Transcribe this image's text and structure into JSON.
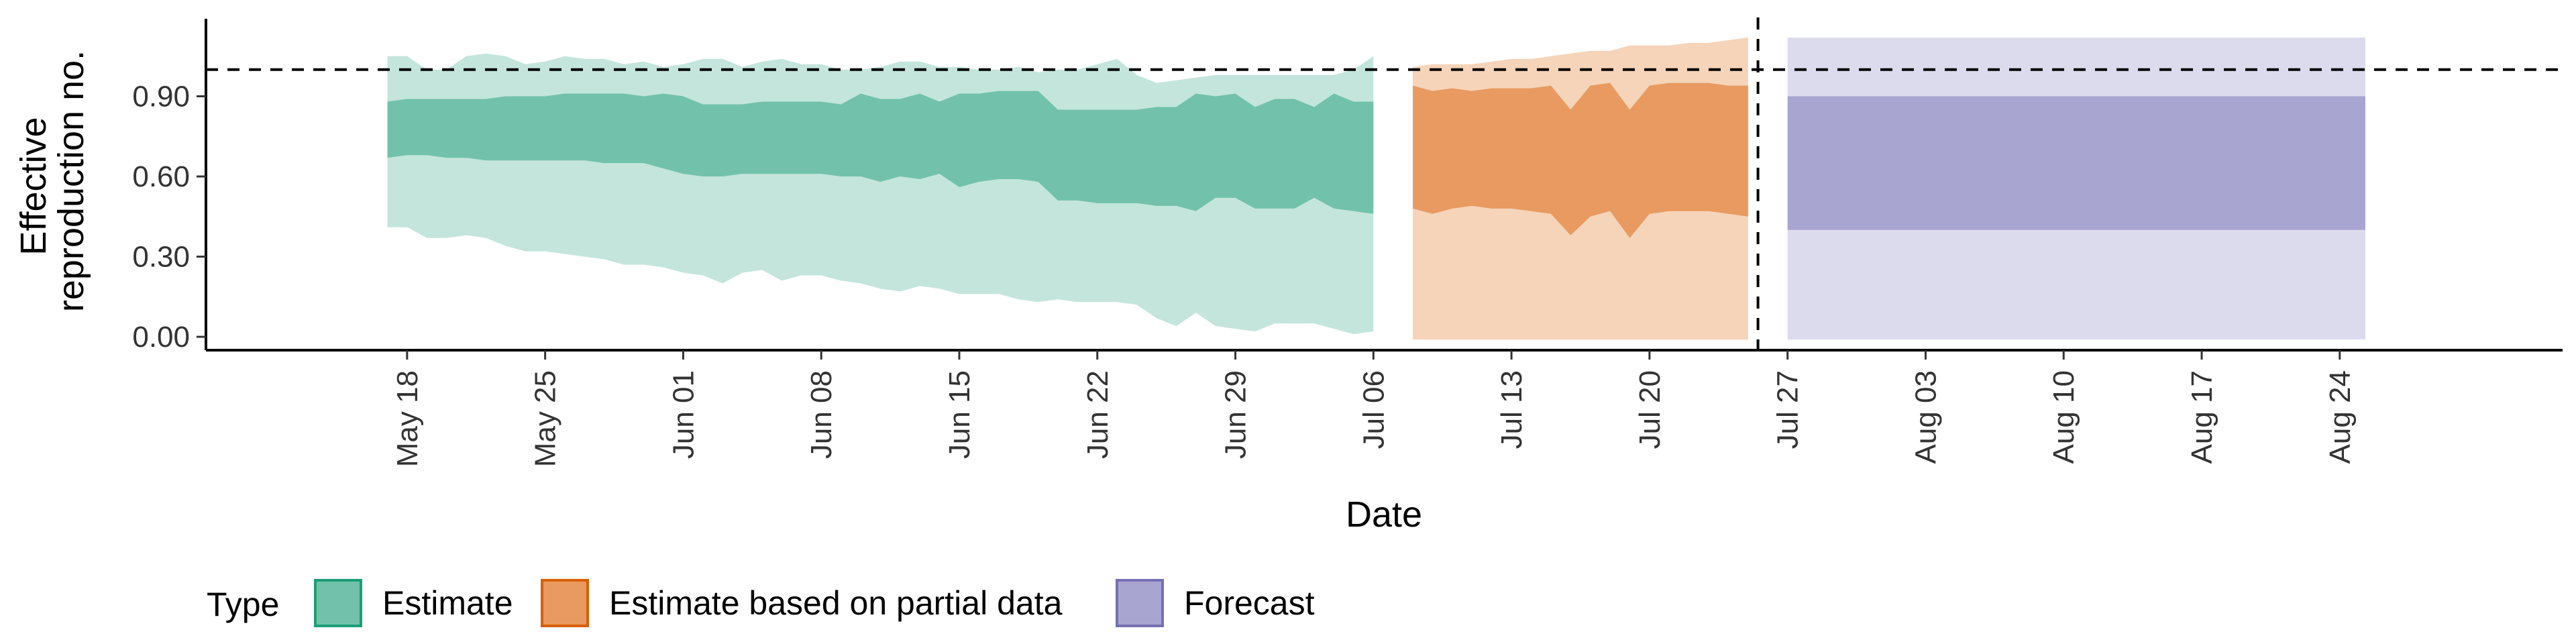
{
  "chart_data": {
    "type": "area",
    "xlabel": "Date",
    "ylabel": [
      "Effective",
      "reproduction no."
    ],
    "ylim": [
      -0.05,
      1.19
    ],
    "x_range_days": [
      -10.2,
      109.3
    ],
    "y_ticks": [
      0.0,
      0.3,
      0.6,
      0.9
    ],
    "y_tick_labels": [
      "0.00",
      "0.30",
      "0.60",
      "0.90"
    ],
    "x_ticks_days": [
      0,
      7,
      14,
      21,
      28,
      35,
      42,
      49,
      56,
      63,
      70,
      77,
      84,
      91,
      98
    ],
    "x_tick_labels": [
      "May 18",
      "May 25",
      "Jun 01",
      "Jun 08",
      "Jun 15",
      "Jun 22",
      "Jun 29",
      "Jul 06",
      "Jul 13",
      "Jul 20",
      "Jul 27",
      "Aug 03",
      "Aug 10",
      "Aug 17",
      "Aug 24"
    ],
    "date_origin": "May 18",
    "reference_hline": 1.0,
    "reference_vline_day": 68.5,
    "legend_title": "Type",
    "legend_position": "bottom-left",
    "series": [
      {
        "name": "Estimate",
        "color": "#1b9e77",
        "fill_dark": "#72c2ab",
        "fill_light": "#c4e5dc",
        "day_start": -1,
        "day_step": 1,
        "upper90": [
          1.05,
          1.05,
          1.0,
          1.0,
          1.05,
          1.06,
          1.05,
          1.02,
          1.03,
          1.05,
          1.04,
          1.04,
          1.02,
          1.03,
          1.01,
          1.02,
          1.04,
          1.04,
          1.01,
          1.03,
          1.04,
          1.02,
          1.02,
          1.0,
          1.0,
          1.01,
          1.03,
          1.03,
          1.01,
          1.01,
          1.0,
          1.0,
          1.01,
          0.99,
          1.0,
          1.0,
          1.02,
          1.04,
          0.98,
          0.95,
          0.96,
          0.97,
          0.98,
          0.98,
          0.98,
          0.98,
          0.98,
          0.98,
          0.98,
          1.0,
          1.05
        ],
        "upper50": [
          0.88,
          0.89,
          0.89,
          0.89,
          0.89,
          0.89,
          0.9,
          0.9,
          0.9,
          0.91,
          0.91,
          0.91,
          0.91,
          0.9,
          0.91,
          0.9,
          0.87,
          0.87,
          0.87,
          0.88,
          0.88,
          0.88,
          0.88,
          0.87,
          0.91,
          0.89,
          0.89,
          0.91,
          0.88,
          0.91,
          0.91,
          0.92,
          0.92,
          0.92,
          0.85,
          0.85,
          0.85,
          0.85,
          0.85,
          0.86,
          0.86,
          0.91,
          0.9,
          0.91,
          0.86,
          0.89,
          0.89,
          0.86,
          0.91,
          0.88,
          0.88
        ],
        "lower50": [
          0.67,
          0.68,
          0.68,
          0.67,
          0.67,
          0.66,
          0.66,
          0.66,
          0.66,
          0.66,
          0.66,
          0.65,
          0.65,
          0.65,
          0.63,
          0.61,
          0.6,
          0.6,
          0.61,
          0.61,
          0.61,
          0.61,
          0.61,
          0.6,
          0.6,
          0.58,
          0.6,
          0.59,
          0.61,
          0.56,
          0.58,
          0.59,
          0.59,
          0.58,
          0.51,
          0.51,
          0.5,
          0.5,
          0.5,
          0.49,
          0.49,
          0.47,
          0.52,
          0.52,
          0.48,
          0.48,
          0.48,
          0.52,
          0.48,
          0.47,
          0.46
        ],
        "lower90": [
          0.41,
          0.41,
          0.37,
          0.37,
          0.38,
          0.37,
          0.34,
          0.32,
          0.32,
          0.31,
          0.3,
          0.29,
          0.27,
          0.27,
          0.26,
          0.24,
          0.23,
          0.2,
          0.24,
          0.25,
          0.21,
          0.23,
          0.23,
          0.21,
          0.2,
          0.18,
          0.17,
          0.19,
          0.18,
          0.16,
          0.16,
          0.16,
          0.14,
          0.13,
          0.14,
          0.13,
          0.13,
          0.13,
          0.12,
          0.07,
          0.04,
          0.09,
          0.04,
          0.03,
          0.02,
          0.05,
          0.05,
          0.05,
          0.03,
          0.01,
          0.02
        ]
      },
      {
        "name": "Estimate based on partial data",
        "color": "#d95f02",
        "fill_dark": "#e89a60",
        "fill_light": "#f5d4b9",
        "day_start": 51,
        "day_step": 1,
        "upper90": [
          1.01,
          1.02,
          1.02,
          1.02,
          1.03,
          1.04,
          1.04,
          1.05,
          1.06,
          1.07,
          1.07,
          1.09,
          1.09,
          1.09,
          1.1,
          1.1,
          1.11,
          1.12
        ],
        "upper50": [
          0.94,
          0.92,
          0.93,
          0.92,
          0.93,
          0.93,
          0.93,
          0.94,
          0.85,
          0.94,
          0.95,
          0.85,
          0.94,
          0.95,
          0.95,
          0.95,
          0.94,
          0.94
        ],
        "lower50": [
          0.48,
          0.46,
          0.48,
          0.49,
          0.48,
          0.48,
          0.47,
          0.46,
          0.38,
          0.45,
          0.47,
          0.37,
          0.46,
          0.47,
          0.47,
          0.47,
          0.46,
          0.45
        ],
        "lower90": [
          -0.01,
          -0.01,
          -0.01,
          -0.01,
          -0.01,
          -0.01,
          -0.01,
          -0.01,
          -0.01,
          -0.01,
          -0.01,
          -0.01,
          -0.01,
          -0.01,
          -0.01,
          -0.01,
          -0.01,
          -0.01
        ]
      },
      {
        "name": "Forecast",
        "color": "#7570b3",
        "fill_dark": "#a8a5d1",
        "fill_light": "#dcdbed",
        "day_start": 70,
        "day_step": 29.3,
        "upper90": [
          1.12,
          1.12
        ],
        "upper50": [
          0.9,
          0.9
        ],
        "lower50": [
          0.4,
          0.4
        ],
        "lower90": [
          -0.01,
          -0.01
        ]
      }
    ]
  }
}
